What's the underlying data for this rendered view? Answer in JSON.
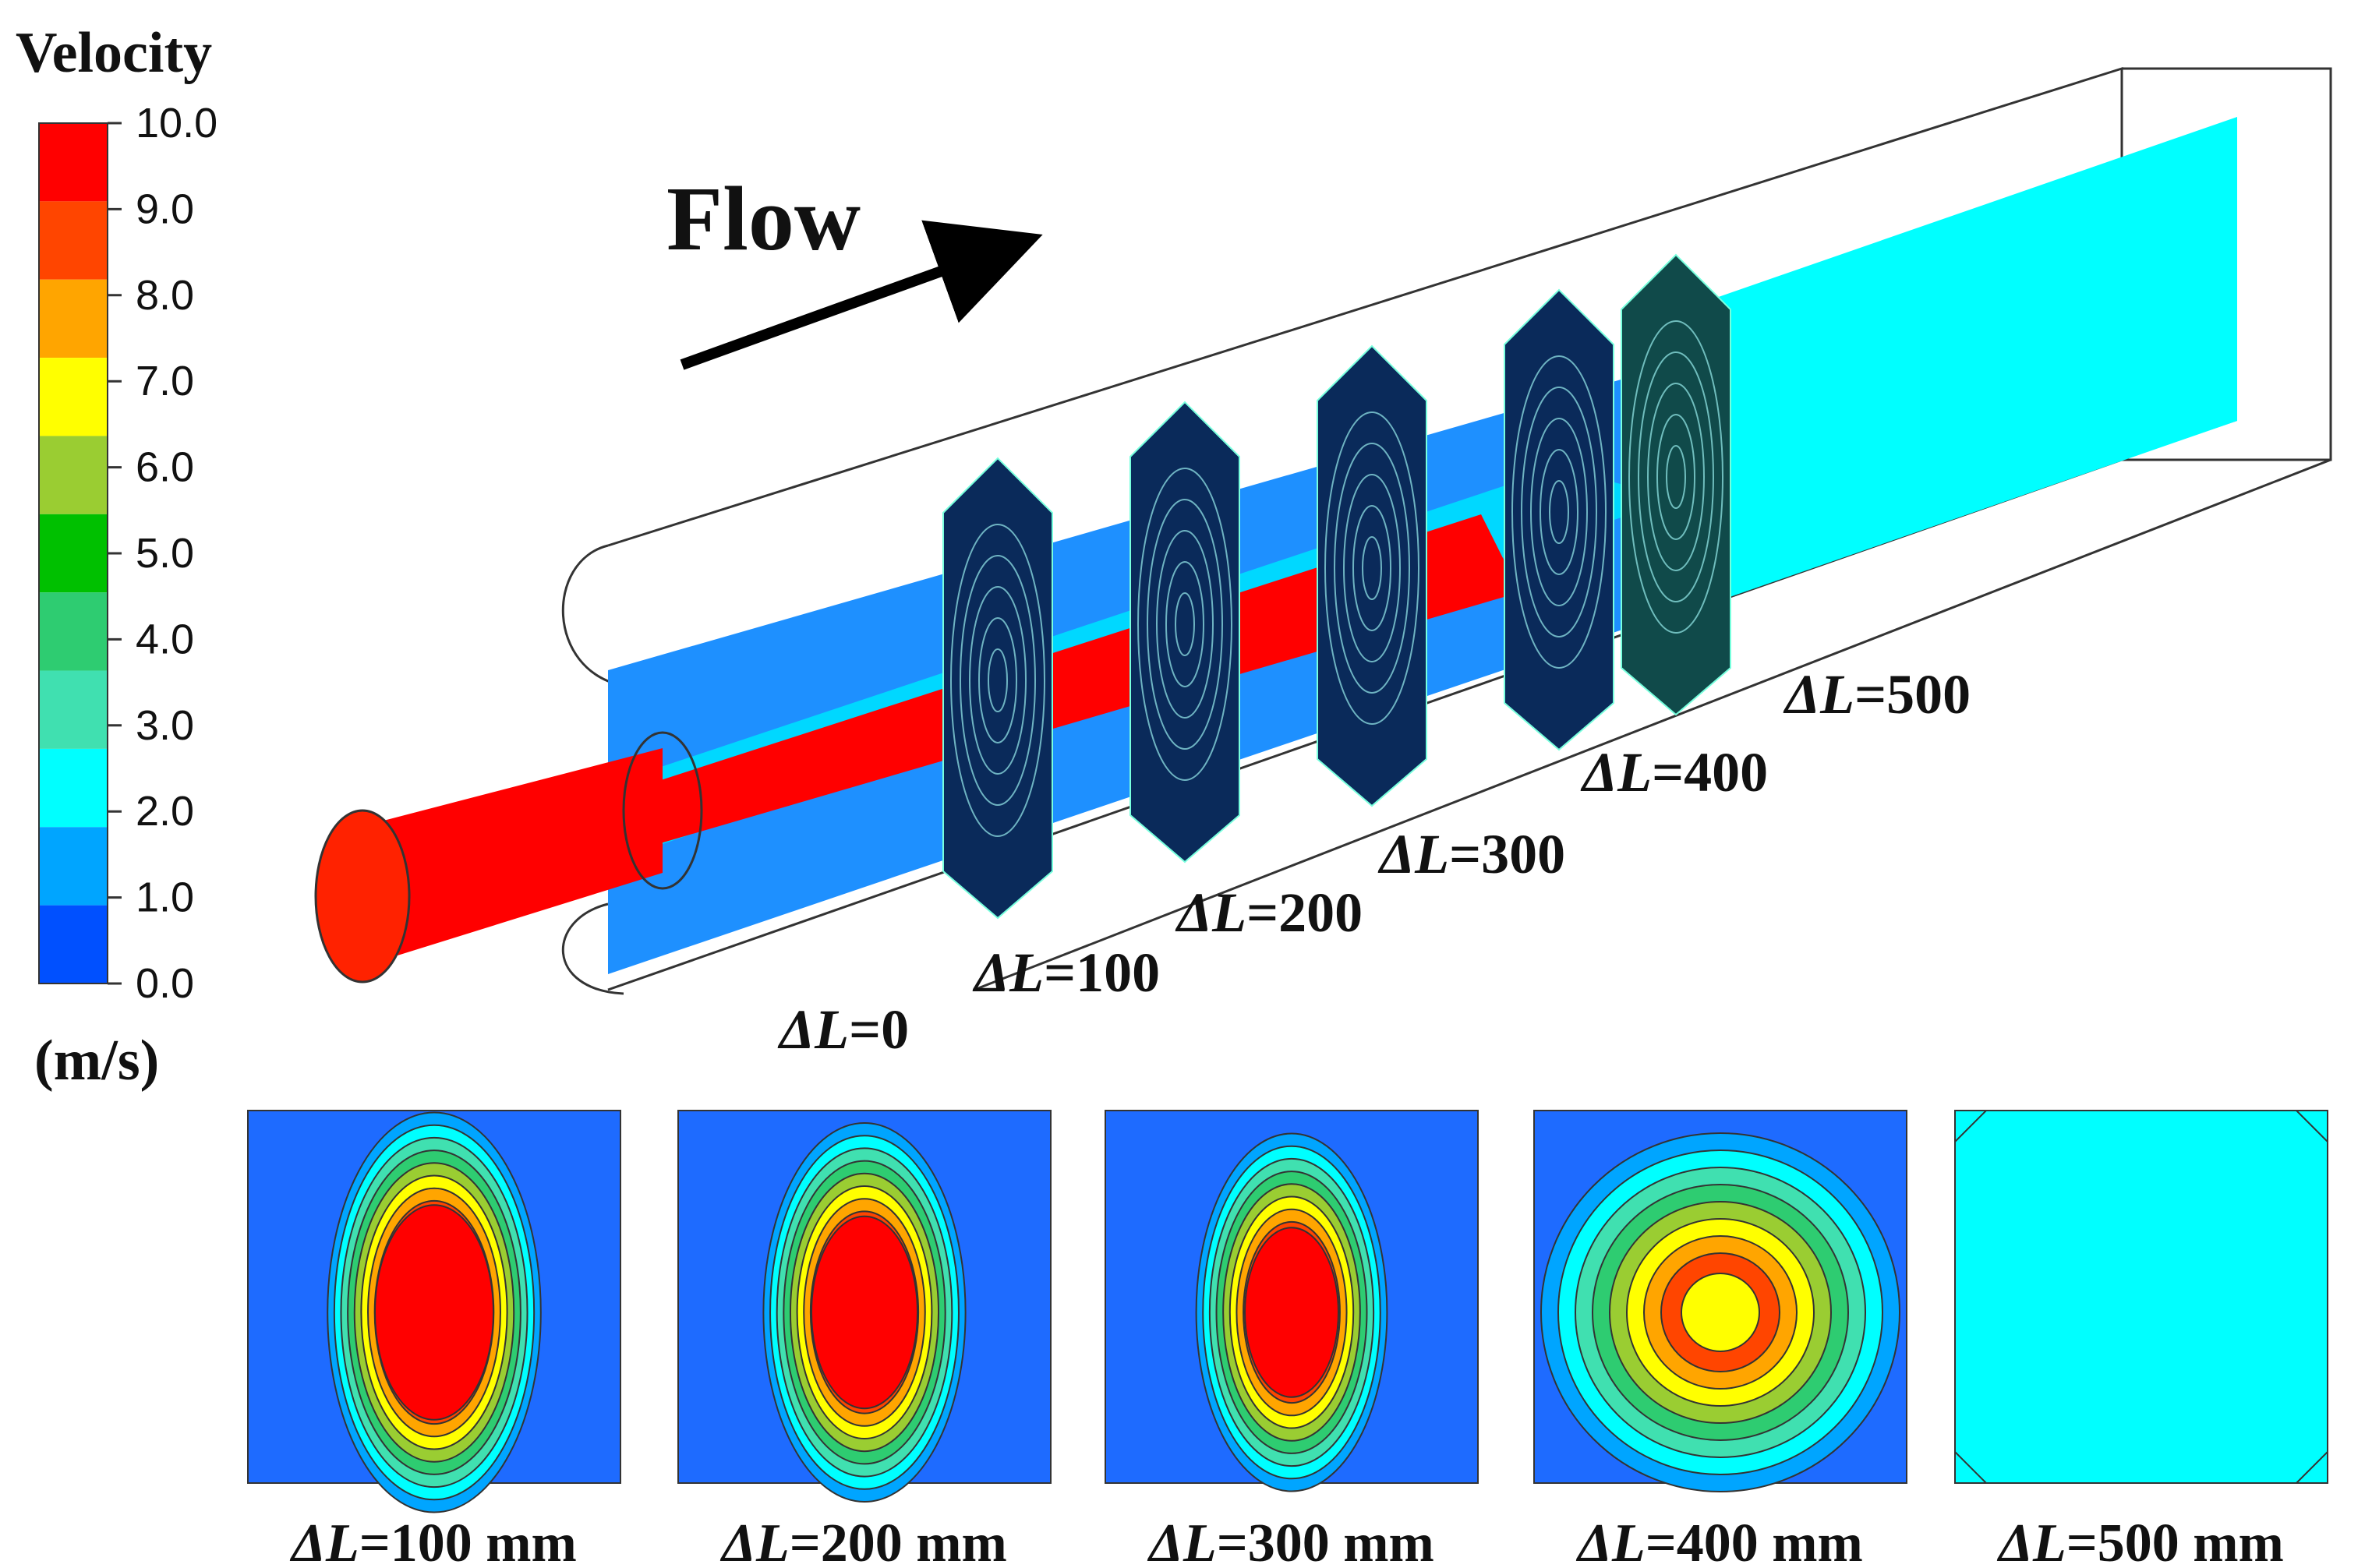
{
  "legend": {
    "title": "Velocity",
    "unit": "(m/s)",
    "ticks": [
      "10.0",
      "9.0",
      "8.0",
      "7.0",
      "6.0",
      "5.0",
      "4.0",
      "3.0",
      "2.0",
      "1.0",
      "0.0"
    ],
    "colors": [
      "#ff0000",
      "#ff4500",
      "#ffa500",
      "#ffff00",
      "#9acd32",
      "#00c000",
      "#2ecc71",
      "#40e0b0",
      "#00ffff",
      "#00a5ff",
      "#0050ff"
    ]
  },
  "flow": {
    "label": "Flow",
    "arrow_icon": "arrow-right-icon"
  },
  "sections": [
    {
      "symbol": "ΔL",
      "value": "=0"
    },
    {
      "symbol": "ΔL",
      "value": "=100"
    },
    {
      "symbol": "ΔL",
      "value": "=200"
    },
    {
      "symbol": "ΔL",
      "value": "=300"
    },
    {
      "symbol": "ΔL",
      "value": "=400"
    },
    {
      "symbol": "ΔL",
      "value": "=500"
    }
  ],
  "panels": [
    {
      "symbol": "ΔL",
      "caption": "=100 mm",
      "peak_color": "#ff0000"
    },
    {
      "symbol": "ΔL",
      "caption": "=200 mm",
      "peak_color": "#ff0000"
    },
    {
      "symbol": "ΔL",
      "caption": "=300 mm",
      "peak_color": "#ff0000"
    },
    {
      "symbol": "ΔL",
      "caption": "=400 mm",
      "peak_color": "#ffff00"
    },
    {
      "symbol": "ΔL",
      "caption": "=500 mm",
      "peak_color": "#00ffff"
    }
  ]
}
